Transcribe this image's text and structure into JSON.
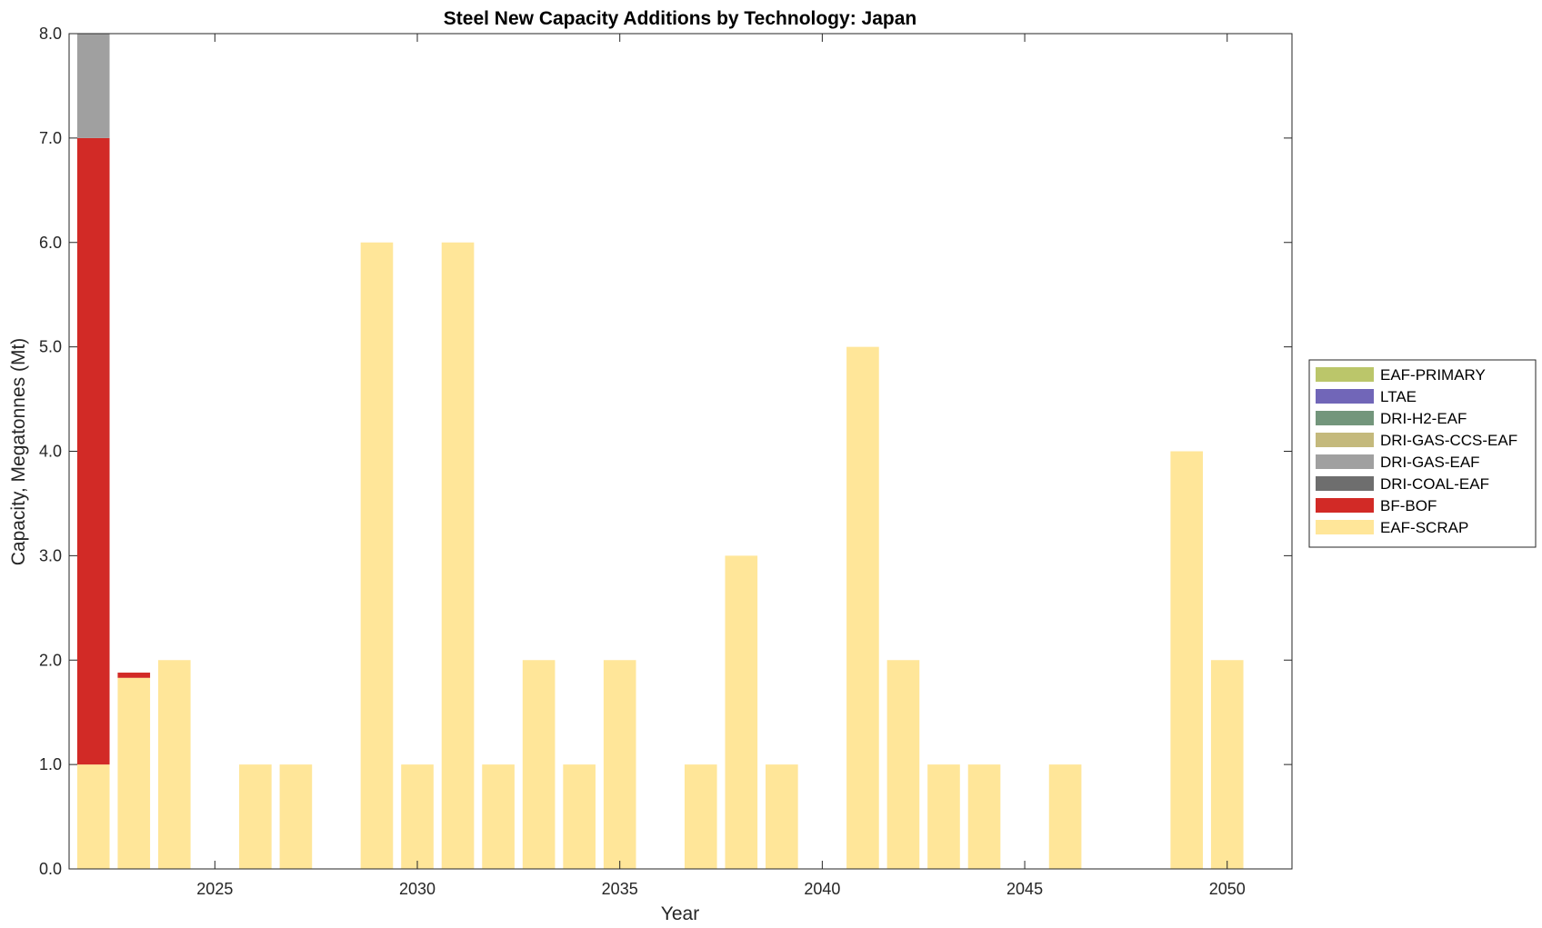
{
  "chart_data": {
    "type": "bar",
    "stacked": true,
    "title": "Steel New Capacity Additions by Technology: Japan",
    "xlabel": "Year",
    "ylabel": "Capacity, Megatonnes (Mt)",
    "xlim": [
      2021.4,
      2051.6
    ],
    "ylim": [
      0,
      8
    ],
    "xticks": [
      2025,
      2030,
      2035,
      2040,
      2045,
      2050
    ],
    "yticks": [
      0,
      1,
      2,
      3,
      4,
      5,
      6,
      7,
      8
    ],
    "ytick_labels": [
      "0.0",
      "1.0",
      "2.0",
      "3.0",
      "4.0",
      "5.0",
      "6.0",
      "7.0",
      "8.0"
    ],
    "grid": false,
    "legend_position": "outside-right",
    "x": [
      2022,
      2023,
      2024,
      2025,
      2026,
      2027,
      2028,
      2029,
      2030,
      2031,
      2032,
      2033,
      2034,
      2035,
      2036,
      2037,
      2038,
      2039,
      2040,
      2041,
      2042,
      2043,
      2044,
      2045,
      2046,
      2047,
      2048,
      2049,
      2050
    ],
    "series": [
      {
        "name": "EAF-SCRAP",
        "color": "#FFE699",
        "values": [
          1,
          1.83,
          2,
          0,
          1,
          1,
          0,
          6,
          1,
          6,
          1,
          2,
          1,
          2,
          0,
          1,
          3,
          1,
          0,
          5,
          2,
          1,
          1,
          0,
          1,
          0,
          0,
          4,
          2
        ]
      },
      {
        "name": "BF-BOF",
        "color": "#D22A26",
        "values": [
          6,
          0.05,
          0,
          0,
          0,
          0,
          0,
          0,
          0,
          0,
          0,
          0,
          0,
          0,
          0,
          0,
          0,
          0,
          0,
          0,
          0,
          0,
          0,
          0,
          0,
          0,
          0,
          0,
          0
        ]
      },
      {
        "name": "DRI-COAL-EAF",
        "color": "#6E6E6E",
        "values": [
          0,
          0,
          0,
          0,
          0,
          0,
          0,
          0,
          0,
          0,
          0,
          0,
          0,
          0,
          0,
          0,
          0,
          0,
          0,
          0,
          0,
          0,
          0,
          0,
          0,
          0,
          0,
          0,
          0
        ]
      },
      {
        "name": "DRI-GAS-EAF",
        "color": "#A0A0A0",
        "values": [
          1,
          0,
          0,
          0,
          0,
          0,
          0,
          0,
          0,
          0,
          0,
          0,
          0,
          0,
          0,
          0,
          0,
          0,
          0,
          0,
          0,
          0,
          0,
          0,
          0,
          0,
          0,
          0,
          0
        ]
      },
      {
        "name": "DRI-GAS-CCS-EAF",
        "color": "#C4B97C",
        "values": [
          0,
          0,
          0,
          0,
          0,
          0,
          0,
          0,
          0,
          0,
          0,
          0,
          0,
          0,
          0,
          0,
          0,
          0,
          0,
          0,
          0,
          0,
          0,
          0,
          0,
          0,
          0,
          0,
          0
        ]
      },
      {
        "name": "DRI-H2-EAF",
        "color": "#73967C",
        "values": [
          0,
          0,
          0,
          0,
          0,
          0,
          0,
          0,
          0,
          0,
          0,
          0,
          0,
          0,
          0,
          0,
          0,
          0,
          0,
          0,
          0,
          0,
          0,
          0,
          0,
          0,
          0,
          0,
          0
        ]
      },
      {
        "name": "LTAE",
        "color": "#7166B8",
        "values": [
          0,
          0,
          0,
          0,
          0,
          0,
          0,
          0,
          0,
          0,
          0,
          0,
          0,
          0,
          0,
          0,
          0,
          0,
          0,
          0,
          0,
          0,
          0,
          0,
          0,
          0,
          0,
          0,
          0
        ]
      },
      {
        "name": "EAF-PRIMARY",
        "color": "#BBC66A",
        "values": [
          0,
          0,
          0,
          0,
          0,
          0,
          0,
          0,
          0,
          0,
          0,
          0,
          0,
          0,
          0,
          0,
          0,
          0,
          0,
          0,
          0,
          0,
          0,
          0,
          0,
          0,
          0,
          0,
          0
        ]
      }
    ],
    "legend_order": [
      "EAF-PRIMARY",
      "LTAE",
      "DRI-H2-EAF",
      "DRI-GAS-CCS-EAF",
      "DRI-GAS-EAF",
      "DRI-COAL-EAF",
      "BF-BOF",
      "EAF-SCRAP"
    ]
  }
}
